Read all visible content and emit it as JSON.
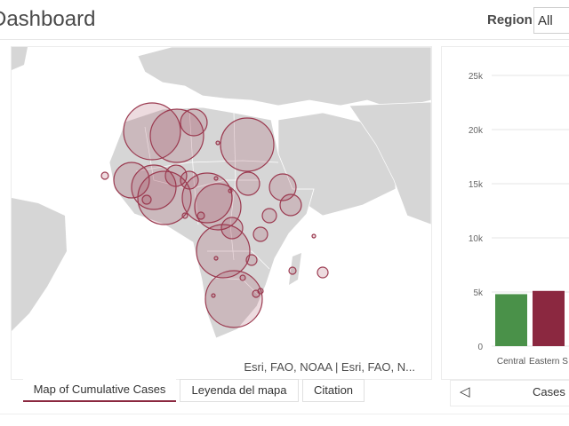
{
  "header": {
    "title": "Dashboard",
    "region_label": "Region",
    "region_value": "All"
  },
  "map": {
    "attribution": "Esri, FAO, NOAA | Esri, FAO, N...",
    "bubble_color": "#9b3a50",
    "tabs": [
      {
        "label": "Map of Cumulative Cases",
        "active": true
      },
      {
        "label": "Leyenda del mapa",
        "active": false
      },
      {
        "label": "Citation",
        "active": false
      }
    ]
  },
  "chart": {
    "caption": "Cases b",
    "prev_icon": "chevron-left-icon"
  },
  "chart_data": {
    "type": "bar",
    "categories": [
      "Central",
      "Eastern S"
    ],
    "values": [
      4800,
      5100
    ],
    "colors": [
      "#4a9149",
      "#8b2840"
    ],
    "ylim": [
      0,
      25000
    ],
    "yticks": [
      "0",
      "5k",
      "10k",
      "15k",
      "20k",
      "25k"
    ]
  }
}
